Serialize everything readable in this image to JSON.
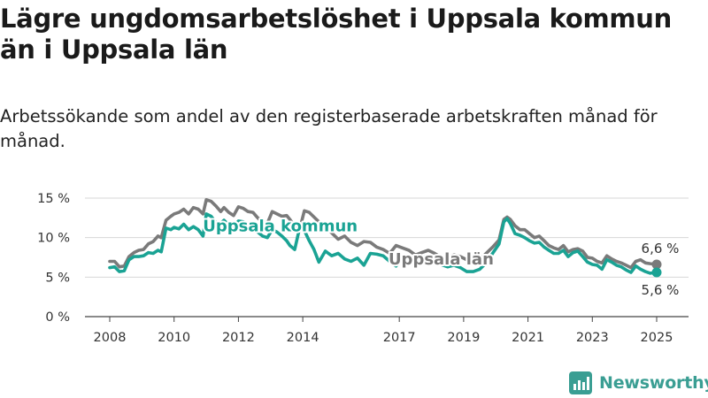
{
  "header": {
    "title": "Lägre ungdomsarbetslöshet i Uppsala kommun än i Uppsala län",
    "subtitle": "Arbetssökande som andel av den registerbaserade arbetskraften månad för månad."
  },
  "brand": {
    "name": "Newsworthy",
    "icon": "newsworthy-logo-icon",
    "color": "#3a9e93"
  },
  "chart_data": {
    "type": "line",
    "title": "",
    "xlabel": "",
    "ylabel": "",
    "ylim": [
      0,
      15
    ],
    "xlim": [
      2008,
      2025.3
    ],
    "grid": "horizontal",
    "legend": "none (direct labels on lines)",
    "y_ticks": [
      {
        "value": 0,
        "label": "0 %"
      },
      {
        "value": 5,
        "label": "5 %"
      },
      {
        "value": 10,
        "label": "10 %"
      },
      {
        "value": 15,
        "label": "15 %"
      }
    ],
    "x_ticks": [
      {
        "value": 2008,
        "label": "2008"
      },
      {
        "value": 2010,
        "label": "2010"
      },
      {
        "value": 2012,
        "label": "2012"
      },
      {
        "value": 2014,
        "label": "2014"
      },
      {
        "value": 2017,
        "label": "2017"
      },
      {
        "value": 2019,
        "label": "2019"
      },
      {
        "value": 2021,
        "label": "2021"
      },
      {
        "value": 2023,
        "label": "2023"
      },
      {
        "value": 2025,
        "label": "2025"
      }
    ],
    "series": [
      {
        "name": "Uppsala län",
        "color": "#7a7a7a",
        "end_label": "6,6 %",
        "x": [
          2008.0,
          2008.15,
          2008.3,
          2008.45,
          2008.6,
          2008.75,
          2008.9,
          2009.05,
          2009.2,
          2009.35,
          2009.5,
          2009.6,
          2009.75,
          2009.9,
          2010.0,
          2010.15,
          2010.3,
          2010.45,
          2010.6,
          2010.75,
          2010.9,
          2011.0,
          2011.15,
          2011.3,
          2011.45,
          2011.55,
          2011.7,
          2011.85,
          2012.0,
          2012.15,
          2012.3,
          2012.45,
          2012.6,
          2012.75,
          2012.9,
          2013.05,
          2013.2,
          2013.35,
          2013.5,
          2013.6,
          2013.75,
          2013.9,
          2014.05,
          2014.2,
          2014.35,
          2014.5,
          2014.7,
          2014.9,
          2015.1,
          2015.3,
          2015.5,
          2015.7,
          2015.9,
          2016.1,
          2016.3,
          2016.5,
          2016.7,
          2016.9,
          2017.1,
          2017.3,
          2017.5,
          2017.7,
          2017.9,
          2018.1,
          2018.3,
          2018.5,
          2018.7,
          2018.9,
          2019.1,
          2019.3,
          2019.5,
          2019.7,
          2019.9,
          2020.1,
          2020.25,
          2020.35,
          2020.45,
          2020.6,
          2020.75,
          2020.9,
          2021.05,
          2021.2,
          2021.35,
          2021.5,
          2021.65,
          2021.8,
          2021.95,
          2022.1,
          2022.25,
          2022.4,
          2022.55,
          2022.7,
          2022.85,
          2023.0,
          2023.15,
          2023.3,
          2023.45,
          2023.6,
          2023.75,
          2023.9,
          2024.05,
          2024.2,
          2024.35,
          2024.5,
          2024.65,
          2024.8,
          2025.0
        ],
        "values": [
          7.0,
          7.0,
          6.3,
          6.4,
          7.6,
          8.1,
          8.4,
          8.5,
          9.2,
          9.5,
          10.2,
          10.0,
          12.2,
          12.7,
          13.0,
          13.2,
          13.6,
          13.0,
          13.8,
          13.6,
          13.0,
          14.8,
          14.6,
          14.0,
          13.3,
          13.8,
          13.2,
          12.8,
          13.9,
          13.7,
          13.3,
          13.2,
          12.5,
          12.0,
          11.8,
          13.3,
          13.0,
          12.7,
          12.8,
          12.3,
          11.4,
          11.0,
          13.4,
          13.2,
          12.6,
          12.0,
          11.5,
          10.6,
          9.8,
          10.2,
          9.4,
          9.0,
          9.5,
          9.4,
          8.8,
          8.5,
          8.0,
          9.0,
          8.7,
          8.4,
          7.8,
          8.1,
          8.4,
          8.0,
          7.5,
          7.5,
          7.8,
          7.6,
          7.2,
          7.0,
          7.2,
          8.0,
          8.8,
          9.7,
          12.3,
          12.6,
          12.3,
          11.5,
          11.0,
          11.0,
          10.5,
          10.0,
          10.2,
          9.6,
          9.0,
          8.7,
          8.5,
          9.0,
          8.2,
          8.5,
          8.6,
          8.3,
          7.5,
          7.4,
          7.0,
          6.8,
          7.7,
          7.3,
          7.0,
          6.8,
          6.5,
          6.2,
          7.0,
          7.2,
          6.8,
          6.7,
          6.6
        ]
      },
      {
        "name": "Uppsala kommun",
        "color": "#1aa394",
        "end_label": "5,6 %",
        "x": [
          2008.0,
          2008.15,
          2008.3,
          2008.45,
          2008.6,
          2008.75,
          2008.9,
          2009.05,
          2009.2,
          2009.35,
          2009.5,
          2009.6,
          2009.75,
          2009.9,
          2010.0,
          2010.15,
          2010.3,
          2010.45,
          2010.6,
          2010.75,
          2010.9,
          2011.0,
          2011.15,
          2011.3,
          2011.45,
          2011.55,
          2011.7,
          2011.85,
          2012.0,
          2012.15,
          2012.3,
          2012.45,
          2012.6,
          2012.75,
          2012.9,
          2013.05,
          2013.2,
          2013.35,
          2013.5,
          2013.6,
          2013.75,
          2013.9,
          2014.05,
          2014.2,
          2014.35,
          2014.5,
          2014.7,
          2014.9,
          2015.1,
          2015.3,
          2015.5,
          2015.7,
          2015.9,
          2016.1,
          2016.3,
          2016.5,
          2016.7,
          2016.9,
          2017.1,
          2017.3,
          2017.5,
          2017.7,
          2017.9,
          2018.1,
          2018.3,
          2018.5,
          2018.7,
          2018.9,
          2019.1,
          2019.3,
          2019.5,
          2019.7,
          2019.9,
          2020.1,
          2020.25,
          2020.35,
          2020.45,
          2020.6,
          2020.75,
          2020.9,
          2021.05,
          2021.2,
          2021.35,
          2021.5,
          2021.65,
          2021.8,
          2021.95,
          2022.1,
          2022.25,
          2022.4,
          2022.55,
          2022.7,
          2022.85,
          2023.0,
          2023.15,
          2023.3,
          2023.45,
          2023.6,
          2023.75,
          2023.9,
          2024.05,
          2024.2,
          2024.35,
          2024.5,
          2024.65,
          2024.8,
          2025.0
        ],
        "values": [
          6.2,
          6.3,
          5.7,
          5.8,
          7.2,
          7.6,
          7.6,
          7.7,
          8.1,
          8.0,
          8.4,
          8.2,
          11.2,
          11.0,
          11.3,
          11.1,
          11.7,
          11.0,
          11.4,
          11.0,
          10.2,
          13.0,
          12.7,
          11.9,
          11.8,
          12.2,
          11.6,
          11.3,
          12.1,
          12.0,
          11.5,
          11.4,
          10.7,
          10.2,
          10.0,
          11.0,
          10.7,
          10.2,
          9.6,
          9.0,
          8.5,
          11.2,
          10.9,
          9.6,
          8.5,
          6.9,
          8.3,
          7.7,
          8.0,
          7.3,
          7.0,
          7.4,
          6.5,
          8.0,
          7.9,
          7.7,
          7.0,
          6.4,
          7.5,
          7.3,
          6.7,
          7.5,
          7.6,
          7.2,
          6.6,
          6.3,
          6.5,
          6.2,
          5.7,
          5.7,
          6.0,
          6.8,
          8.0,
          9.2,
          12.0,
          12.4,
          11.8,
          10.5,
          10.3,
          10.0,
          9.6,
          9.3,
          9.4,
          8.8,
          8.4,
          8.0,
          8.0,
          8.4,
          7.6,
          8.1,
          8.3,
          7.6,
          6.9,
          6.6,
          6.5,
          6.0,
          7.2,
          6.9,
          6.5,
          6.3,
          5.9,
          5.6,
          6.4,
          6.0,
          5.7,
          5.5,
          5.6
        ]
      }
    ],
    "annotations": [
      {
        "text": "Uppsala kommun",
        "series": "Uppsala kommun",
        "x": 2013.3,
        "y": 10.8
      },
      {
        "text": "Uppsala län",
        "series": "Uppsala län",
        "x": 2018.3,
        "y": 6.6
      }
    ]
  }
}
